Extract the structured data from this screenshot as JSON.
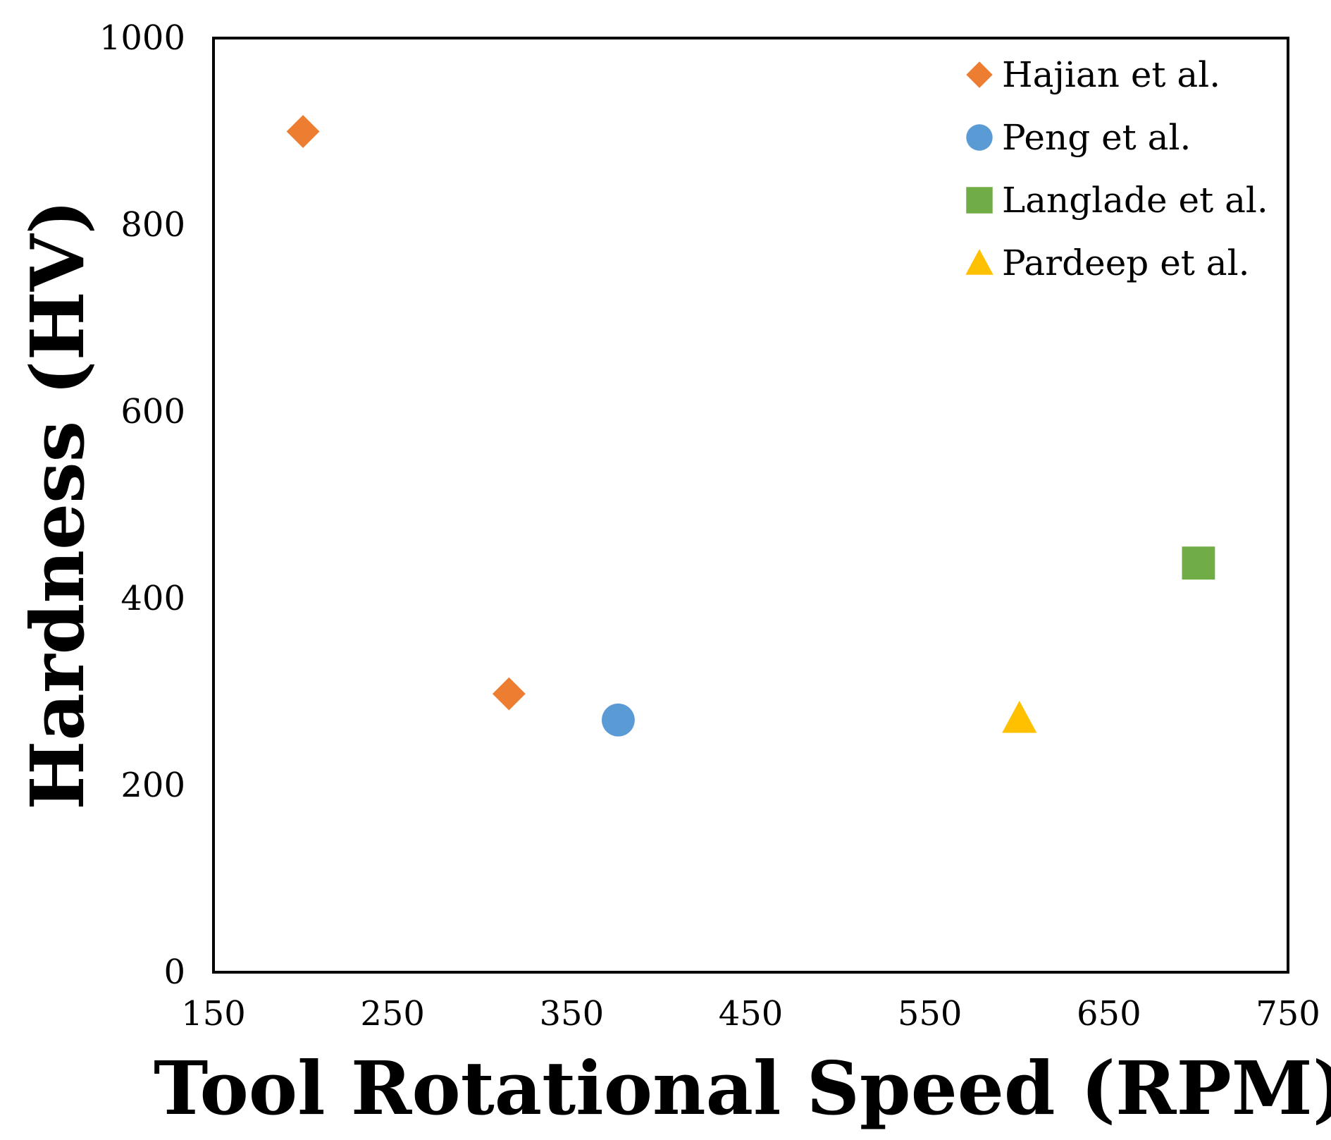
{
  "chart_data": {
    "type": "scatter",
    "title": "",
    "xlabel": "Tool Rotational Speed (RPM)",
    "ylabel": "Hardness (HV)",
    "xlim": [
      150,
      750
    ],
    "ylim": [
      0,
      1000
    ],
    "x_ticks": [
      150,
      250,
      350,
      450,
      550,
      650,
      750
    ],
    "y_ticks": [
      0,
      200,
      400,
      600,
      800,
      1000
    ],
    "grid": false,
    "legend_position": "top-right",
    "series": [
      {
        "name": "Hajian et al.",
        "marker": "diamond",
        "color": "#ED7D31",
        "points": [
          {
            "x": 200,
            "y": 900
          },
          {
            "x": 315,
            "y": 298
          }
        ]
      },
      {
        "name": "Peng et al.",
        "marker": "circle",
        "color": "#5B9BD5",
        "points": [
          {
            "x": 376,
            "y": 270
          }
        ]
      },
      {
        "name": "Langlade et al.",
        "marker": "square",
        "color": "#70AD47",
        "points": [
          {
            "x": 700,
            "y": 438
          }
        ]
      },
      {
        "name": "Pardeep et al.",
        "marker": "triangle",
        "color": "#FFC000",
        "points": [
          {
            "x": 600,
            "y": 272
          }
        ]
      }
    ]
  }
}
